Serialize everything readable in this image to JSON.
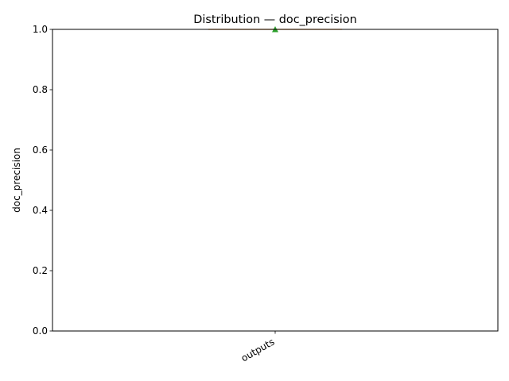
{
  "chart_data": {
    "type": "box",
    "title": "Distribution — doc_precision",
    "xlabel": "",
    "ylabel": "doc_precision",
    "categories": [
      "outputs"
    ],
    "ylim": [
      0,
      1
    ],
    "yticks": [
      0.0,
      0.2,
      0.4,
      0.6,
      0.8,
      1.0
    ],
    "ytick_labels": [
      "0.0",
      "0.2",
      "0.4",
      "0.6",
      "0.8",
      "1.0"
    ],
    "series": [
      {
        "category": "outputs",
        "min": 1.0,
        "q1": 1.0,
        "median": 1.0,
        "q3": 1.0,
        "max": 1.0,
        "mean": 1.0
      }
    ],
    "grid": false,
    "colors": {
      "box": "#000000",
      "median": "#ff7f0e",
      "mean_marker": "#2ca02c"
    }
  }
}
